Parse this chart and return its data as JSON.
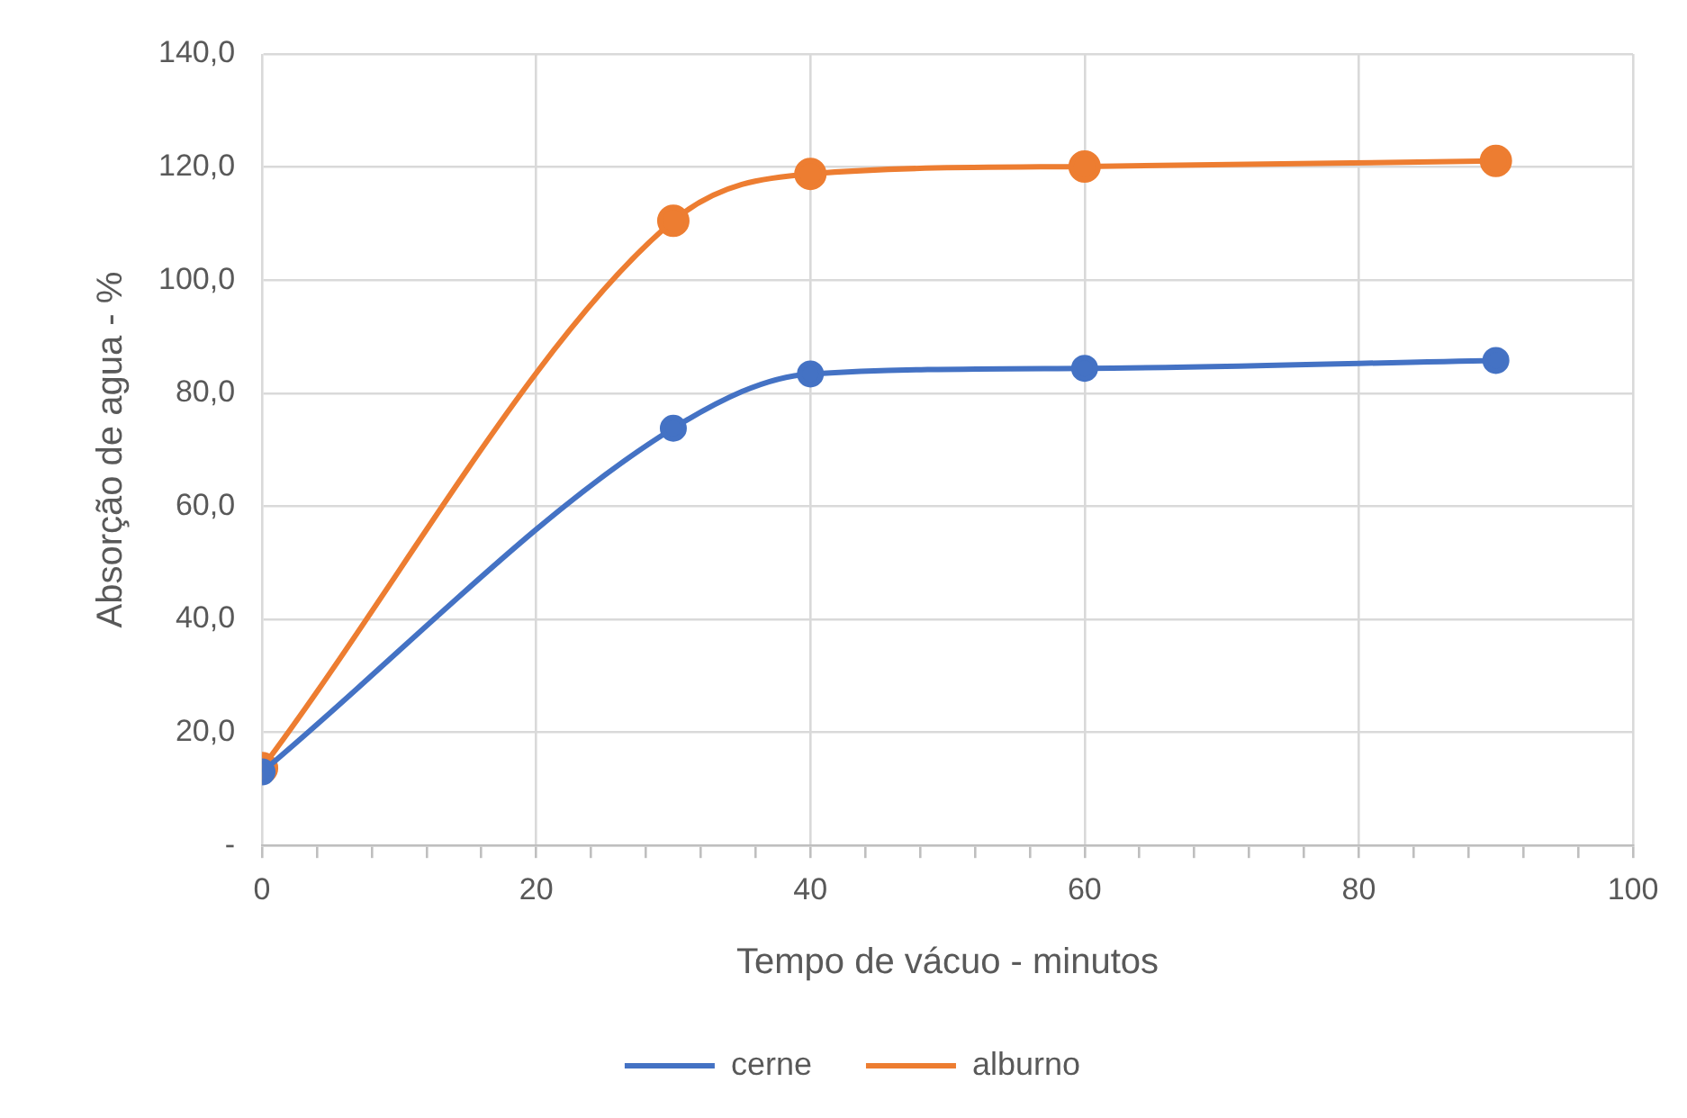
{
  "chart_data": {
    "type": "line",
    "xlabel": "Tempo de vácuo - minutos",
    "ylabel": "Absorção de agua - %",
    "xlim": [
      0,
      100
    ],
    "xticks": [
      0,
      {
        "value": 4,
        "label": null
      },
      {
        "value": 8,
        "label": null
      },
      {
        "value": 12,
        "label": null
      },
      {
        "value": 16,
        "label": null
      },
      20,
      {
        "value": 24,
        "label": null
      },
      {
        "value": 28,
        "label": null
      },
      {
        "value": 32,
        "label": null
      },
      {
        "value": 36,
        "label": null
      },
      40,
      {
        "value": 44,
        "label": null
      },
      {
        "value": 48,
        "label": null
      },
      {
        "value": 52,
        "label": null
      },
      {
        "value": 56,
        "label": null
      },
      60,
      {
        "value": 64,
        "label": null
      },
      {
        "value": 68,
        "label": null
      },
      {
        "value": 72,
        "label": null
      },
      {
        "value": 76,
        "label": null
      },
      80,
      {
        "value": 84,
        "label": null
      },
      {
        "value": 88,
        "label": null
      },
      {
        "value": 92,
        "label": null
      },
      {
        "value": 96,
        "label": null
      },
      100
    ],
    "ylim": [
      0,
      140
    ],
    "yticks": [
      {
        "value": 0,
        "label": "-"
      },
      {
        "value": 20,
        "label": "20,0"
      },
      {
        "value": 40,
        "label": "40,0"
      },
      {
        "value": 60,
        "label": "60,0"
      },
      {
        "value": 80,
        "label": "80,0"
      },
      {
        "value": 100,
        "label": "100,0"
      },
      {
        "value": 120,
        "label": "120,0"
      },
      {
        "value": 140,
        "label": "140,0"
      }
    ],
    "x": [
      0,
      30,
      40,
      60,
      90
    ],
    "series": [
      {
        "name": "cerne",
        "color": "#4472c4",
        "values": [
          13.0,
          73.8,
          83.4,
          84.4,
          85.8
        ]
      },
      {
        "name": "alburno",
        "color": "#ed7d31",
        "values": [
          13.7,
          110.5,
          118.8,
          120.1,
          121.1
        ]
      }
    ],
    "grid": true,
    "legend": "bottom",
    "marker": "circle",
    "line_style": "solid"
  }
}
